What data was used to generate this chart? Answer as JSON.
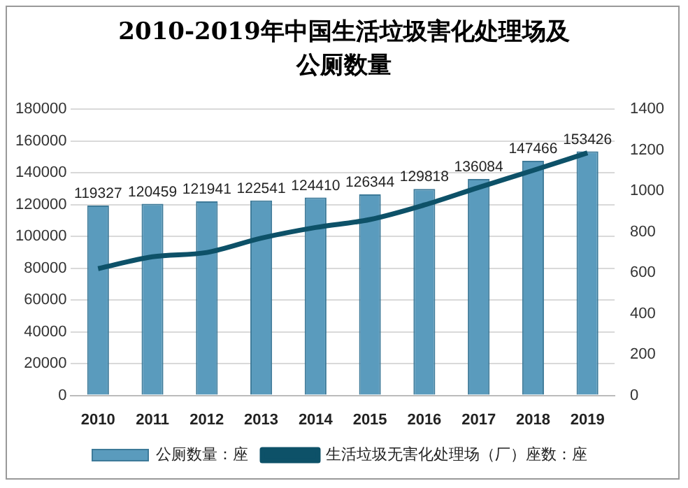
{
  "chart_data": {
    "type": "bar",
    "title": "2010-2019年中国生活垃圾害化处理场及公厕数量",
    "categories": [
      "2010",
      "2011",
      "2012",
      "2013",
      "2014",
      "2015",
      "2016",
      "2017",
      "2018",
      "2019"
    ],
    "series": [
      {
        "name": "公厕数量：座",
        "color": "#5a9bbd",
        "values": [
          119327,
          120459,
          121941,
          122541,
          124410,
          126344,
          129818,
          136084,
          147466,
          153426
        ]
      },
      {
        "name": "生活垃圾无害化处理场（厂）座数：座",
        "type": "line",
        "axis": "y2",
        "color": "#0d5168",
        "values": [
          620,
          678,
          699,
          769,
          821,
          860,
          931,
          1017,
          1100,
          1186
        ]
      }
    ],
    "ylim": [
      0,
      180000
    ],
    "yticks": [
      0,
      20000,
      40000,
      60000,
      80000,
      100000,
      120000,
      140000,
      160000,
      180000
    ],
    "y2lim": [
      0,
      1400
    ],
    "y2ticks": [
      0,
      200,
      400,
      600,
      800,
      1000,
      1200,
      1400
    ],
    "grid": "y",
    "legend": "bottom",
    "marker": "none",
    "line_style": "solid",
    "value_labels": [
      "119327",
      "120459",
      "121941",
      "122541",
      "124410",
      "126344",
      "129818",
      "136084",
      "147466",
      "153426"
    ]
  }
}
